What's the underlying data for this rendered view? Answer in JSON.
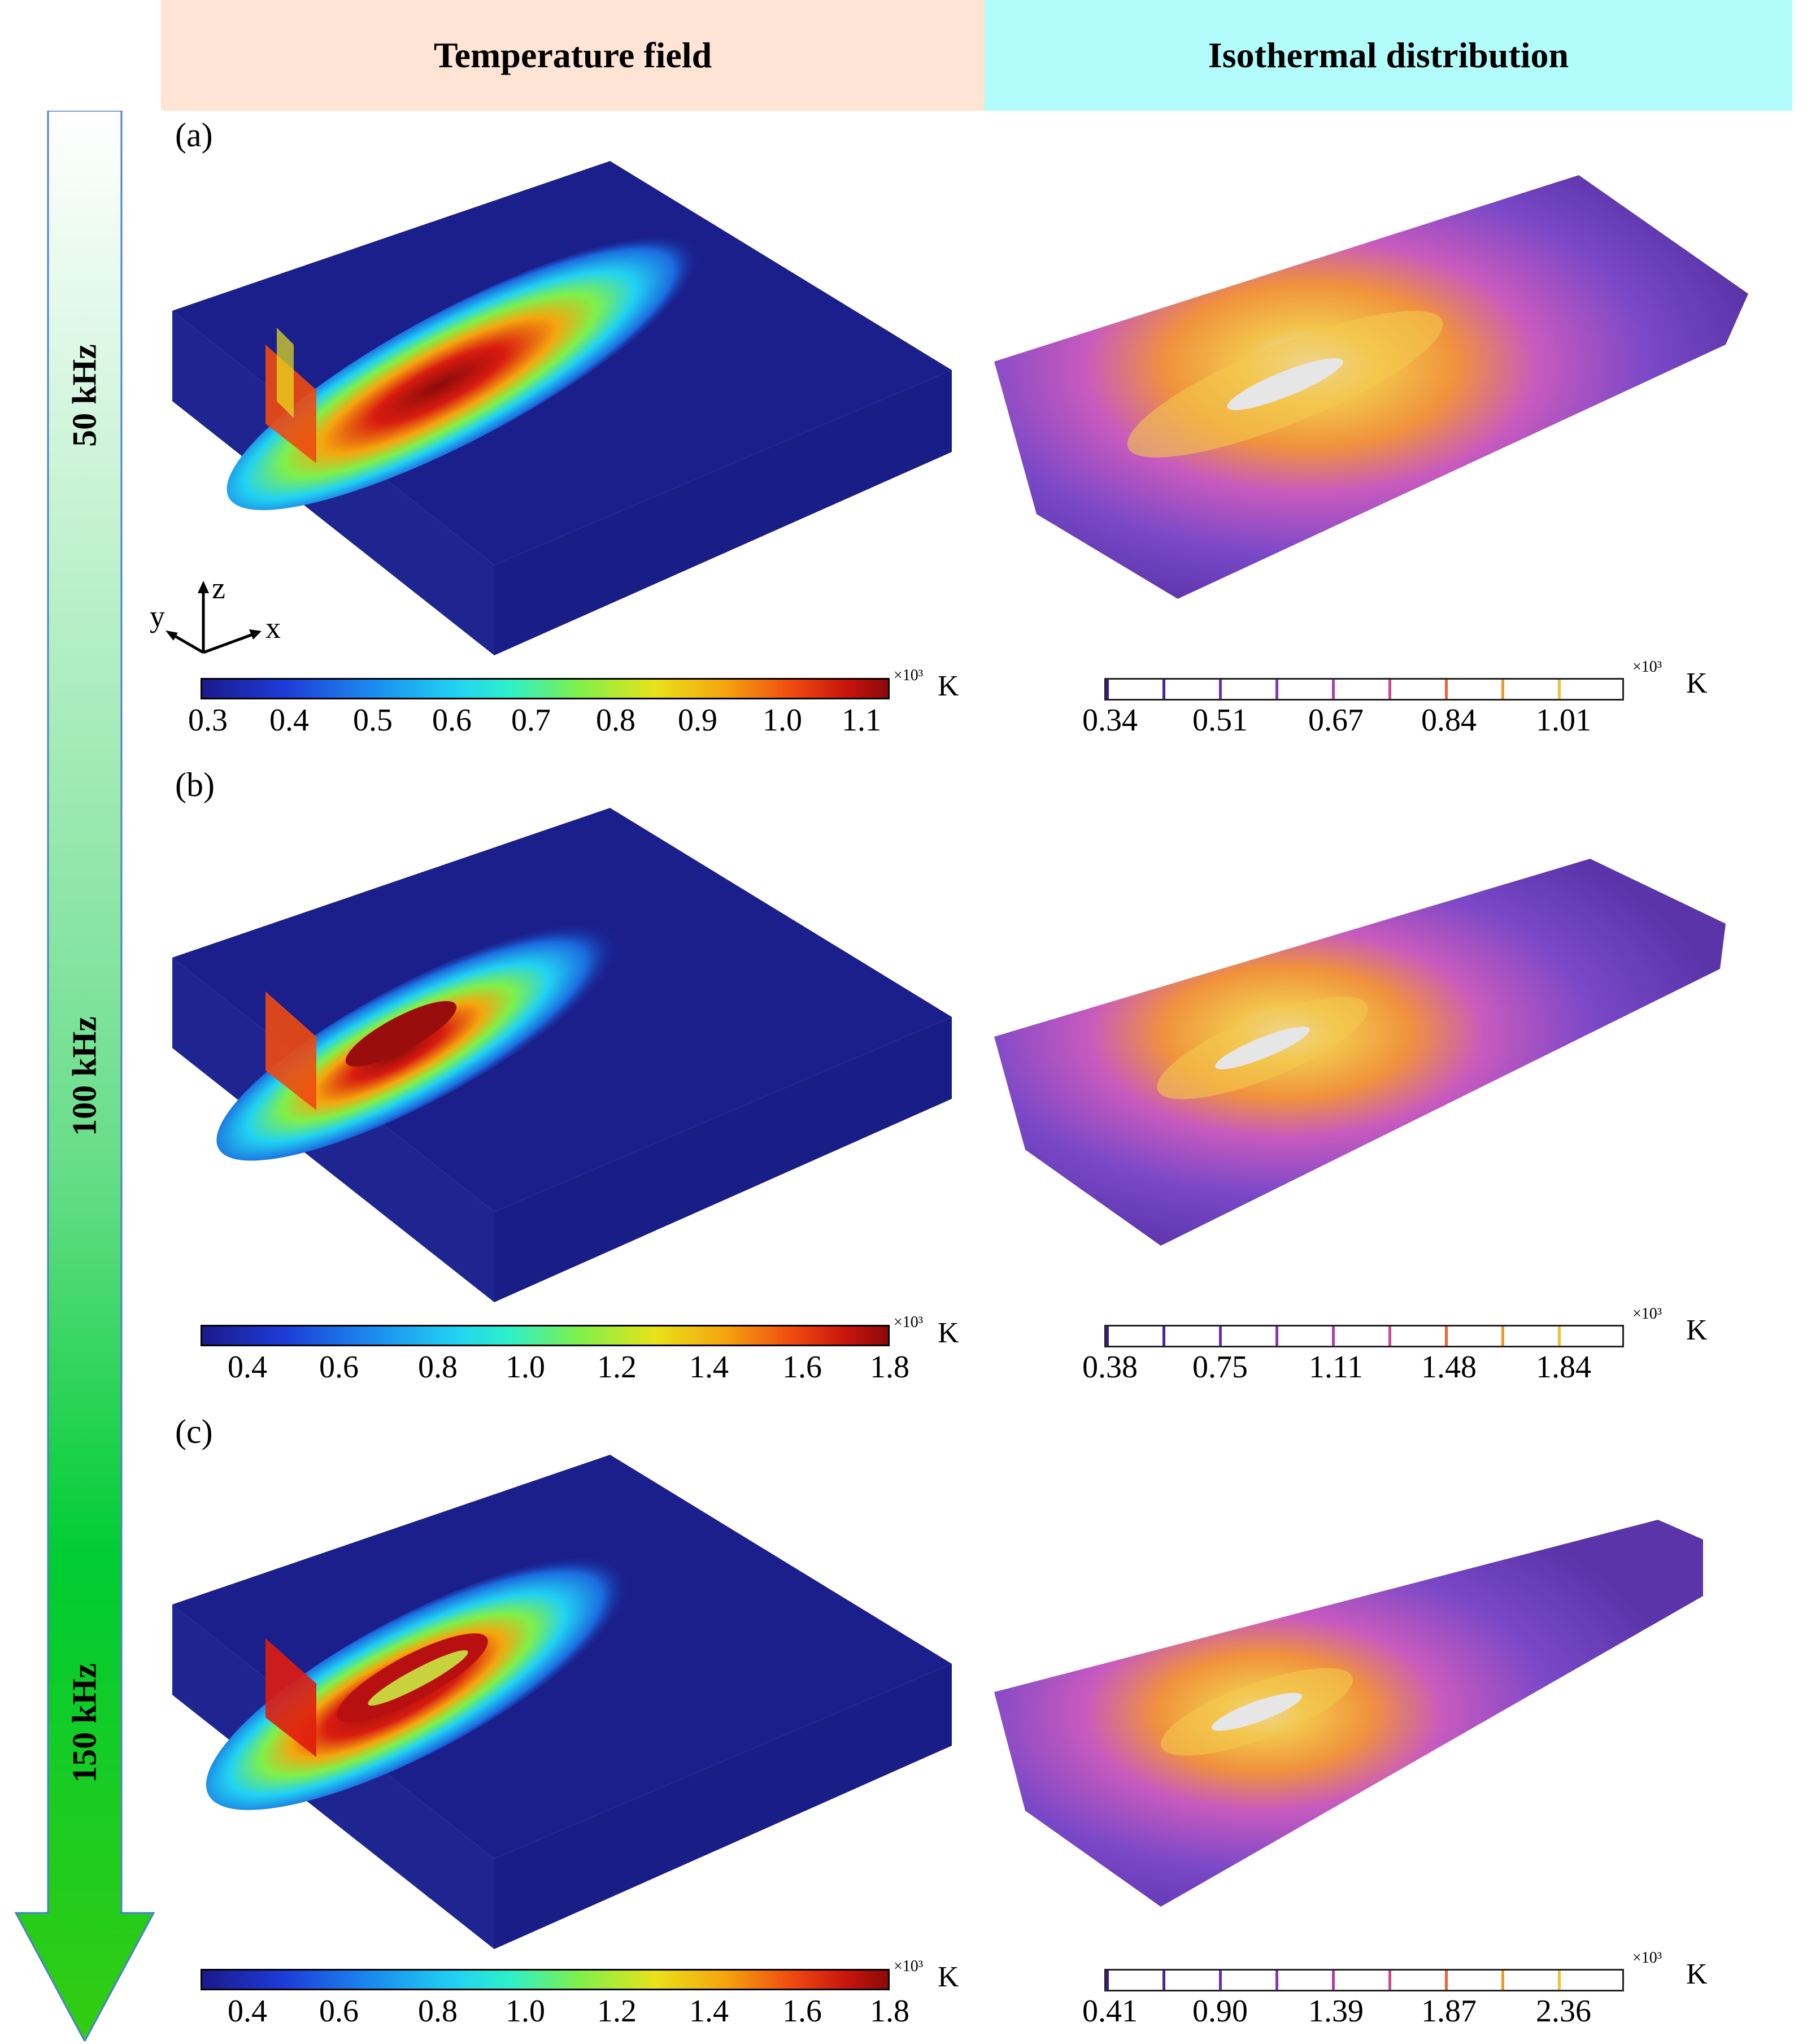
{
  "headers": {
    "left": "Temperature field",
    "right": "Isothermal distribution"
  },
  "frequency_axis": {
    "labels": [
      "50 kHz",
      "100 kHz",
      "150 kHz"
    ]
  },
  "axes_glyph": {
    "x": "x",
    "y": "y",
    "z": "z"
  },
  "panels": [
    {
      "tag": "(a)",
      "temperature_colorbar": {
        "ticks": [
          "0.3",
          "0.4",
          "0.5",
          "0.6",
          "0.7",
          "0.8",
          "0.9",
          "1.0",
          "1.1"
        ],
        "exponent": "×10³",
        "unit": "K"
      },
      "isothermal_colorbar": {
        "ticks": [
          "0.34",
          "0.51",
          "0.67",
          "0.84",
          "1.01"
        ],
        "exponent": "×10³",
        "unit": "K"
      }
    },
    {
      "tag": "(b)",
      "temperature_colorbar": {
        "ticks": [
          "0.4",
          "0.6",
          "0.8",
          "1.0",
          "1.2",
          "1.4",
          "1.6",
          "1.8"
        ],
        "exponent": "×10³",
        "unit": "K"
      },
      "isothermal_colorbar": {
        "ticks": [
          "0.38",
          "0.75",
          "1.11",
          "1.48",
          "1.84"
        ],
        "exponent": "×10³",
        "unit": "K"
      }
    },
    {
      "tag": "(c)",
      "temperature_colorbar": {
        "ticks": [
          "0.4",
          "0.6",
          "0.8",
          "1.0",
          "1.2",
          "1.4",
          "1.6",
          "1.8"
        ],
        "exponent": "×10³",
        "unit": "K"
      },
      "isothermal_colorbar": {
        "ticks": [
          "0.41",
          "0.90",
          "1.39",
          "1.87",
          "2.36"
        ],
        "exponent": "×10³",
        "unit": "K"
      }
    }
  ],
  "colors": {
    "block_blue": "#1a1f8c",
    "jet_red": "#c8140c",
    "iso_purple": "#6a3bb8",
    "iso_gold": "#f2b43c",
    "header_left_bg": "#fde4d4",
    "header_right_bg": "#b2fcfc",
    "arrow_green": "#00cc33"
  }
}
